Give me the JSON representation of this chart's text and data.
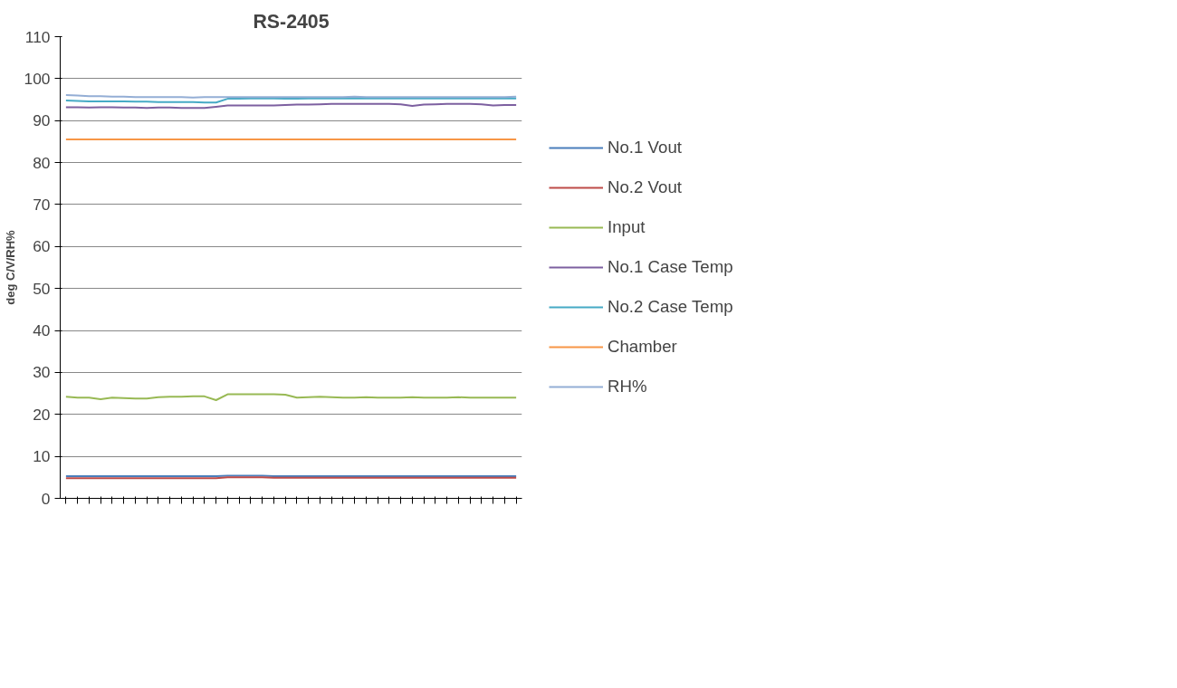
{
  "chart_data": {
    "type": "line",
    "title": "RS-2405",
    "ylabel": "deg C/V/RH%",
    "categories": [
      null,
      null,
      null,
      null,
      null,
      null,
      null,
      null,
      null,
      null,
      null,
      null,
      null,
      null,
      null,
      null,
      null,
      null,
      null,
      null,
      null,
      null,
      null,
      null,
      null,
      null,
      null,
      null,
      null,
      null,
      null,
      null,
      null,
      null,
      null,
      null,
      null,
      null,
      null,
      null
    ],
    "ylim": [
      0,
      110
    ],
    "yticks": [
      0,
      10,
      20,
      30,
      40,
      50,
      60,
      70,
      80,
      90,
      100,
      110
    ],
    "grid": "y",
    "legend": "right",
    "marker": "none",
    "line_style": "solid",
    "series": [
      {
        "name": "No.1 Vout",
        "color": "#4a7ebb",
        "values": [
          5.3,
          5.3,
          5.3,
          5.3,
          5.3,
          5.3,
          5.3,
          5.3,
          5.3,
          5.3,
          5.3,
          5.3,
          5.3,
          5.3,
          5.4,
          5.4,
          5.4,
          5.4,
          5.3,
          5.3,
          5.3,
          5.3,
          5.3,
          5.3,
          5.3,
          5.3,
          5.3,
          5.3,
          5.3,
          5.3,
          5.3,
          5.3,
          5.3,
          5.3,
          5.3,
          5.3,
          5.3,
          5.3,
          5.3,
          5.3
        ]
      },
      {
        "name": "No.2 Vout",
        "color": "#be4b48",
        "values": [
          4.8,
          4.8,
          4.8,
          4.8,
          4.8,
          4.8,
          4.8,
          4.8,
          4.8,
          4.8,
          4.8,
          4.8,
          4.8,
          4.8,
          5.0,
          5.0,
          5.0,
          5.0,
          4.9,
          4.9,
          4.9,
          4.9,
          4.9,
          4.9,
          4.9,
          4.9,
          4.9,
          4.9,
          4.9,
          4.9,
          4.9,
          4.9,
          4.9,
          4.9,
          4.9,
          4.9,
          4.9,
          4.9,
          4.9,
          4.9
        ]
      },
      {
        "name": "Input",
        "color": "#98b954",
        "values": [
          24.2,
          24.0,
          24.0,
          23.6,
          24.0,
          23.9,
          23.8,
          23.8,
          24.1,
          24.2,
          24.2,
          24.3,
          24.3,
          23.4,
          24.8,
          24.8,
          24.8,
          24.8,
          24.8,
          24.7,
          24.0,
          24.1,
          24.2,
          24.1,
          24.0,
          24.0,
          24.1,
          24.0,
          24.0,
          24.0,
          24.1,
          24.0,
          24.0,
          24.0,
          24.1,
          24.0,
          24.0,
          24.0,
          24.0,
          24.0
        ]
      },
      {
        "name": "No.1 Case Temp",
        "color": "#7d60a0",
        "values": [
          93.2,
          93.2,
          93.1,
          93.2,
          93.2,
          93.1,
          93.1,
          93.0,
          93.1,
          93.1,
          93.0,
          93.0,
          93.0,
          93.3,
          93.6,
          93.6,
          93.6,
          93.6,
          93.6,
          93.7,
          93.8,
          93.8,
          93.9,
          94.0,
          94.0,
          94.0,
          94.0,
          94.0,
          94.0,
          93.9,
          93.5,
          93.8,
          93.9,
          94.0,
          94.0,
          94.0,
          93.9,
          93.6,
          93.7,
          93.7
        ]
      },
      {
        "name": "No.2 Case Temp",
        "color": "#46aac5",
        "values": [
          94.8,
          94.7,
          94.6,
          94.6,
          94.6,
          94.6,
          94.5,
          94.5,
          94.4,
          94.4,
          94.4,
          94.4,
          94.3,
          94.3,
          95.2,
          95.2,
          95.3,
          95.3,
          95.3,
          95.2,
          95.2,
          95.3,
          95.3,
          95.3,
          95.3,
          95.3,
          95.3,
          95.3,
          95.3,
          95.3,
          95.3,
          95.3,
          95.3,
          95.3,
          95.3,
          95.3,
          95.3,
          95.3,
          95.3,
          95.3
        ]
      },
      {
        "name": "Chamber",
        "color": "#f79646",
        "values": [
          85.5,
          85.5,
          85.5,
          85.5,
          85.5,
          85.5,
          85.5,
          85.5,
          85.5,
          85.5,
          85.5,
          85.5,
          85.5,
          85.5,
          85.5,
          85.5,
          85.5,
          85.5,
          85.5,
          85.5,
          85.5,
          85.5,
          85.5,
          85.5,
          85.5,
          85.5,
          85.5,
          85.5,
          85.5,
          85.5,
          85.5,
          85.5,
          85.5,
          85.5,
          85.5,
          85.5,
          85.5,
          85.5,
          85.5,
          85.5
        ]
      },
      {
        "name": "RH%",
        "color": "#94aed5",
        "values": [
          96.1,
          96.0,
          95.8,
          95.8,
          95.7,
          95.7,
          95.6,
          95.6,
          95.6,
          95.6,
          95.6,
          95.5,
          95.6,
          95.6,
          95.6,
          95.6,
          95.6,
          95.6,
          95.6,
          95.6,
          95.6,
          95.6,
          95.6,
          95.6,
          95.6,
          95.7,
          95.6,
          95.6,
          95.6,
          95.6,
          95.6,
          95.6,
          95.6,
          95.6,
          95.6,
          95.6,
          95.6,
          95.6,
          95.6,
          95.7
        ]
      }
    ]
  }
}
